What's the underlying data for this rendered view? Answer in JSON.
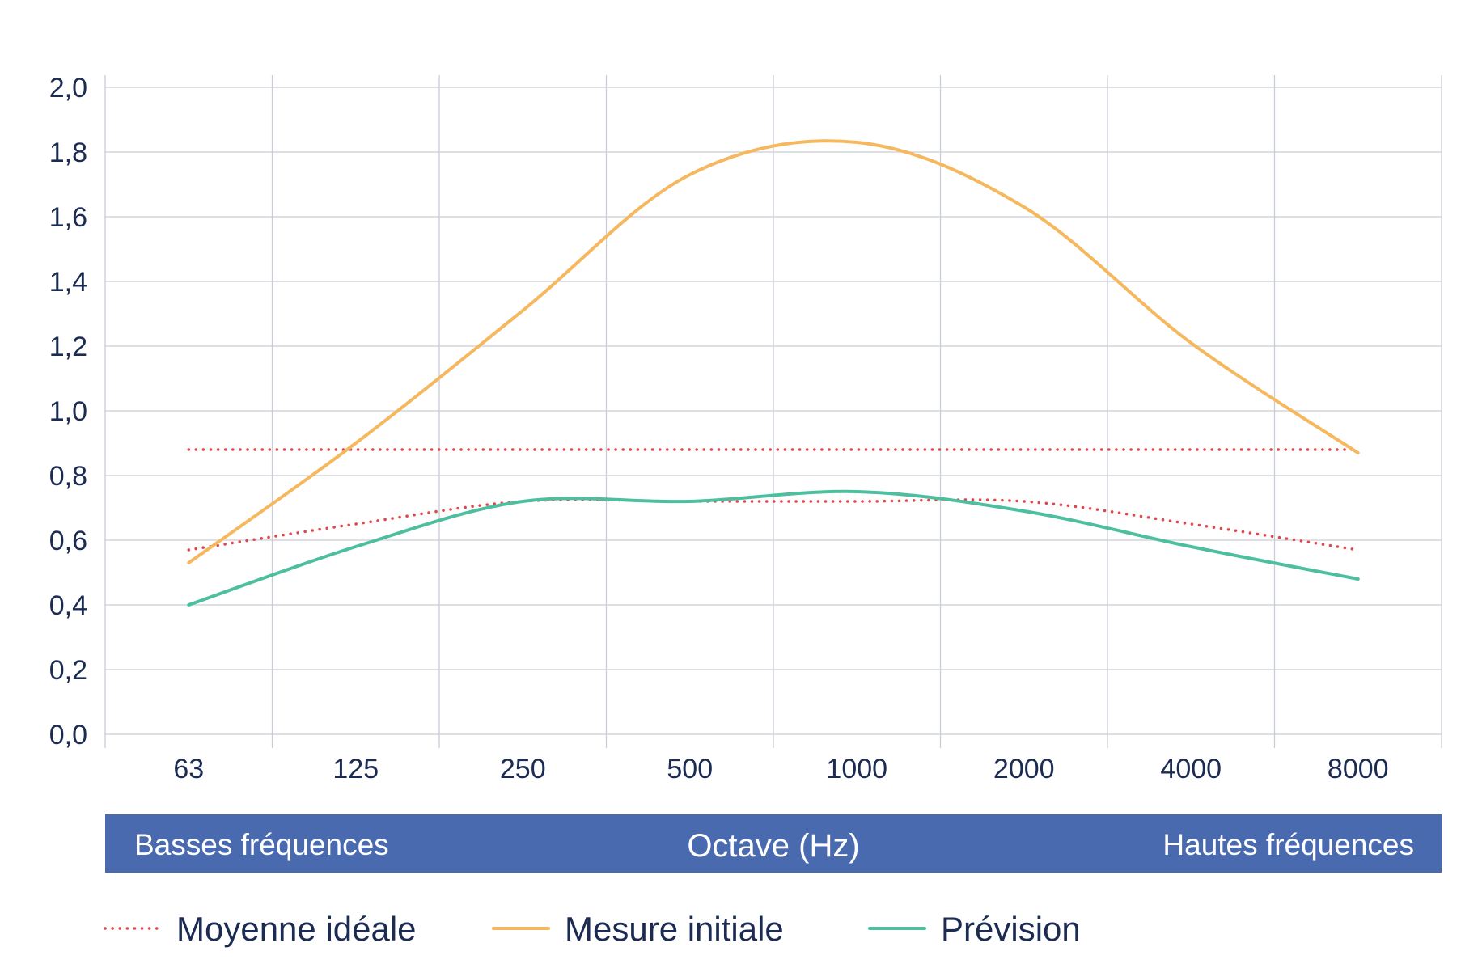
{
  "chart_data": {
    "type": "line",
    "x_categories": [
      "63",
      "125",
      "250",
      "500",
      "1000",
      "2000",
      "4000",
      "8000"
    ],
    "y_ticks": [
      "0,0",
      "0,2",
      "0,4",
      "0,6",
      "0,8",
      "1,0",
      "1,2",
      "1,4",
      "1,6",
      "1,8",
      "2,0"
    ],
    "ylim": [
      0,
      2.0
    ],
    "grid": true,
    "band": {
      "left": "Basses fréquences",
      "center": "Octave (Hz)",
      "right": "Hautes fréquences",
      "color": "#4a6ab0"
    },
    "legend_position": "bottom-left",
    "series": [
      {
        "name": "Moyenne idéale",
        "style": "dotted",
        "color": "#e0474c",
        "values": [
          0.88,
          0.88,
          0.88,
          0.88,
          0.88,
          0.88,
          0.88,
          0.88
        ]
      },
      {
        "name": "",
        "style": "dotted",
        "color": "#e0474c",
        "values": [
          0.57,
          0.65,
          0.72,
          0.72,
          0.72,
          0.72,
          0.65,
          0.57
        ]
      },
      {
        "name": "Mesure initiale",
        "style": "solid",
        "color": "#f5b85e",
        "values": [
          0.53,
          0.9,
          1.31,
          1.73,
          1.83,
          1.63,
          1.21,
          0.87
        ]
      },
      {
        "name": "Prévision",
        "style": "solid",
        "color": "#4dbf9f",
        "values": [
          0.4,
          0.58,
          0.72,
          0.72,
          0.75,
          0.69,
          0.58,
          0.48
        ]
      }
    ]
  }
}
